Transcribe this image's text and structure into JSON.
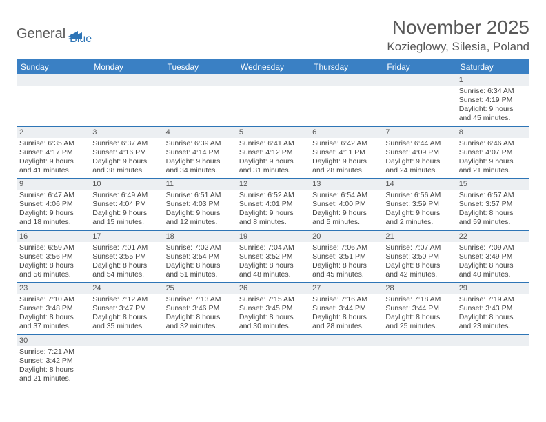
{
  "logo": {
    "part1": "General",
    "part2": "Blue"
  },
  "title": "November 2025",
  "location": "Kozieglowy, Silesia, Poland",
  "colors": {
    "header_bg": "#3a80c4",
    "daynum_bg": "#eceff2",
    "week_divider": "#2e75b6",
    "logo_gray": "#5a5a5a",
    "logo_blue": "#2e75b6",
    "title_color": "#595959"
  },
  "weekdays": [
    "Sunday",
    "Monday",
    "Tuesday",
    "Wednesday",
    "Thursday",
    "Friday",
    "Saturday"
  ],
  "weeks": [
    [
      {
        "n": "",
        "sunrise": "",
        "sunset": "",
        "daylight": ""
      },
      {
        "n": "",
        "sunrise": "",
        "sunset": "",
        "daylight": ""
      },
      {
        "n": "",
        "sunrise": "",
        "sunset": "",
        "daylight": ""
      },
      {
        "n": "",
        "sunrise": "",
        "sunset": "",
        "daylight": ""
      },
      {
        "n": "",
        "sunrise": "",
        "sunset": "",
        "daylight": ""
      },
      {
        "n": "",
        "sunrise": "",
        "sunset": "",
        "daylight": ""
      },
      {
        "n": "1",
        "sunrise": "Sunrise: 6:34 AM",
        "sunset": "Sunset: 4:19 PM",
        "daylight": "Daylight: 9 hours and 45 minutes."
      }
    ],
    [
      {
        "n": "2",
        "sunrise": "Sunrise: 6:35 AM",
        "sunset": "Sunset: 4:17 PM",
        "daylight": "Daylight: 9 hours and 41 minutes."
      },
      {
        "n": "3",
        "sunrise": "Sunrise: 6:37 AM",
        "sunset": "Sunset: 4:16 PM",
        "daylight": "Daylight: 9 hours and 38 minutes."
      },
      {
        "n": "4",
        "sunrise": "Sunrise: 6:39 AM",
        "sunset": "Sunset: 4:14 PM",
        "daylight": "Daylight: 9 hours and 34 minutes."
      },
      {
        "n": "5",
        "sunrise": "Sunrise: 6:41 AM",
        "sunset": "Sunset: 4:12 PM",
        "daylight": "Daylight: 9 hours and 31 minutes."
      },
      {
        "n": "6",
        "sunrise": "Sunrise: 6:42 AM",
        "sunset": "Sunset: 4:11 PM",
        "daylight": "Daylight: 9 hours and 28 minutes."
      },
      {
        "n": "7",
        "sunrise": "Sunrise: 6:44 AM",
        "sunset": "Sunset: 4:09 PM",
        "daylight": "Daylight: 9 hours and 24 minutes."
      },
      {
        "n": "8",
        "sunrise": "Sunrise: 6:46 AM",
        "sunset": "Sunset: 4:07 PM",
        "daylight": "Daylight: 9 hours and 21 minutes."
      }
    ],
    [
      {
        "n": "9",
        "sunrise": "Sunrise: 6:47 AM",
        "sunset": "Sunset: 4:06 PM",
        "daylight": "Daylight: 9 hours and 18 minutes."
      },
      {
        "n": "10",
        "sunrise": "Sunrise: 6:49 AM",
        "sunset": "Sunset: 4:04 PM",
        "daylight": "Daylight: 9 hours and 15 minutes."
      },
      {
        "n": "11",
        "sunrise": "Sunrise: 6:51 AM",
        "sunset": "Sunset: 4:03 PM",
        "daylight": "Daylight: 9 hours and 12 minutes."
      },
      {
        "n": "12",
        "sunrise": "Sunrise: 6:52 AM",
        "sunset": "Sunset: 4:01 PM",
        "daylight": "Daylight: 9 hours and 8 minutes."
      },
      {
        "n": "13",
        "sunrise": "Sunrise: 6:54 AM",
        "sunset": "Sunset: 4:00 PM",
        "daylight": "Daylight: 9 hours and 5 minutes."
      },
      {
        "n": "14",
        "sunrise": "Sunrise: 6:56 AM",
        "sunset": "Sunset: 3:59 PM",
        "daylight": "Daylight: 9 hours and 2 minutes."
      },
      {
        "n": "15",
        "sunrise": "Sunrise: 6:57 AM",
        "sunset": "Sunset: 3:57 PM",
        "daylight": "Daylight: 8 hours and 59 minutes."
      }
    ],
    [
      {
        "n": "16",
        "sunrise": "Sunrise: 6:59 AM",
        "sunset": "Sunset: 3:56 PM",
        "daylight": "Daylight: 8 hours and 56 minutes."
      },
      {
        "n": "17",
        "sunrise": "Sunrise: 7:01 AM",
        "sunset": "Sunset: 3:55 PM",
        "daylight": "Daylight: 8 hours and 54 minutes."
      },
      {
        "n": "18",
        "sunrise": "Sunrise: 7:02 AM",
        "sunset": "Sunset: 3:54 PM",
        "daylight": "Daylight: 8 hours and 51 minutes."
      },
      {
        "n": "19",
        "sunrise": "Sunrise: 7:04 AM",
        "sunset": "Sunset: 3:52 PM",
        "daylight": "Daylight: 8 hours and 48 minutes."
      },
      {
        "n": "20",
        "sunrise": "Sunrise: 7:06 AM",
        "sunset": "Sunset: 3:51 PM",
        "daylight": "Daylight: 8 hours and 45 minutes."
      },
      {
        "n": "21",
        "sunrise": "Sunrise: 7:07 AM",
        "sunset": "Sunset: 3:50 PM",
        "daylight": "Daylight: 8 hours and 42 minutes."
      },
      {
        "n": "22",
        "sunrise": "Sunrise: 7:09 AM",
        "sunset": "Sunset: 3:49 PM",
        "daylight": "Daylight: 8 hours and 40 minutes."
      }
    ],
    [
      {
        "n": "23",
        "sunrise": "Sunrise: 7:10 AM",
        "sunset": "Sunset: 3:48 PM",
        "daylight": "Daylight: 8 hours and 37 minutes."
      },
      {
        "n": "24",
        "sunrise": "Sunrise: 7:12 AM",
        "sunset": "Sunset: 3:47 PM",
        "daylight": "Daylight: 8 hours and 35 minutes."
      },
      {
        "n": "25",
        "sunrise": "Sunrise: 7:13 AM",
        "sunset": "Sunset: 3:46 PM",
        "daylight": "Daylight: 8 hours and 32 minutes."
      },
      {
        "n": "26",
        "sunrise": "Sunrise: 7:15 AM",
        "sunset": "Sunset: 3:45 PM",
        "daylight": "Daylight: 8 hours and 30 minutes."
      },
      {
        "n": "27",
        "sunrise": "Sunrise: 7:16 AM",
        "sunset": "Sunset: 3:44 PM",
        "daylight": "Daylight: 8 hours and 28 minutes."
      },
      {
        "n": "28",
        "sunrise": "Sunrise: 7:18 AM",
        "sunset": "Sunset: 3:44 PM",
        "daylight": "Daylight: 8 hours and 25 minutes."
      },
      {
        "n": "29",
        "sunrise": "Sunrise: 7:19 AM",
        "sunset": "Sunset: 3:43 PM",
        "daylight": "Daylight: 8 hours and 23 minutes."
      }
    ],
    [
      {
        "n": "30",
        "sunrise": "Sunrise: 7:21 AM",
        "sunset": "Sunset: 3:42 PM",
        "daylight": "Daylight: 8 hours and 21 minutes."
      },
      {
        "n": "",
        "sunrise": "",
        "sunset": "",
        "daylight": ""
      },
      {
        "n": "",
        "sunrise": "",
        "sunset": "",
        "daylight": ""
      },
      {
        "n": "",
        "sunrise": "",
        "sunset": "",
        "daylight": ""
      },
      {
        "n": "",
        "sunrise": "",
        "sunset": "",
        "daylight": ""
      },
      {
        "n": "",
        "sunrise": "",
        "sunset": "",
        "daylight": ""
      },
      {
        "n": "",
        "sunrise": "",
        "sunset": "",
        "daylight": ""
      }
    ]
  ]
}
